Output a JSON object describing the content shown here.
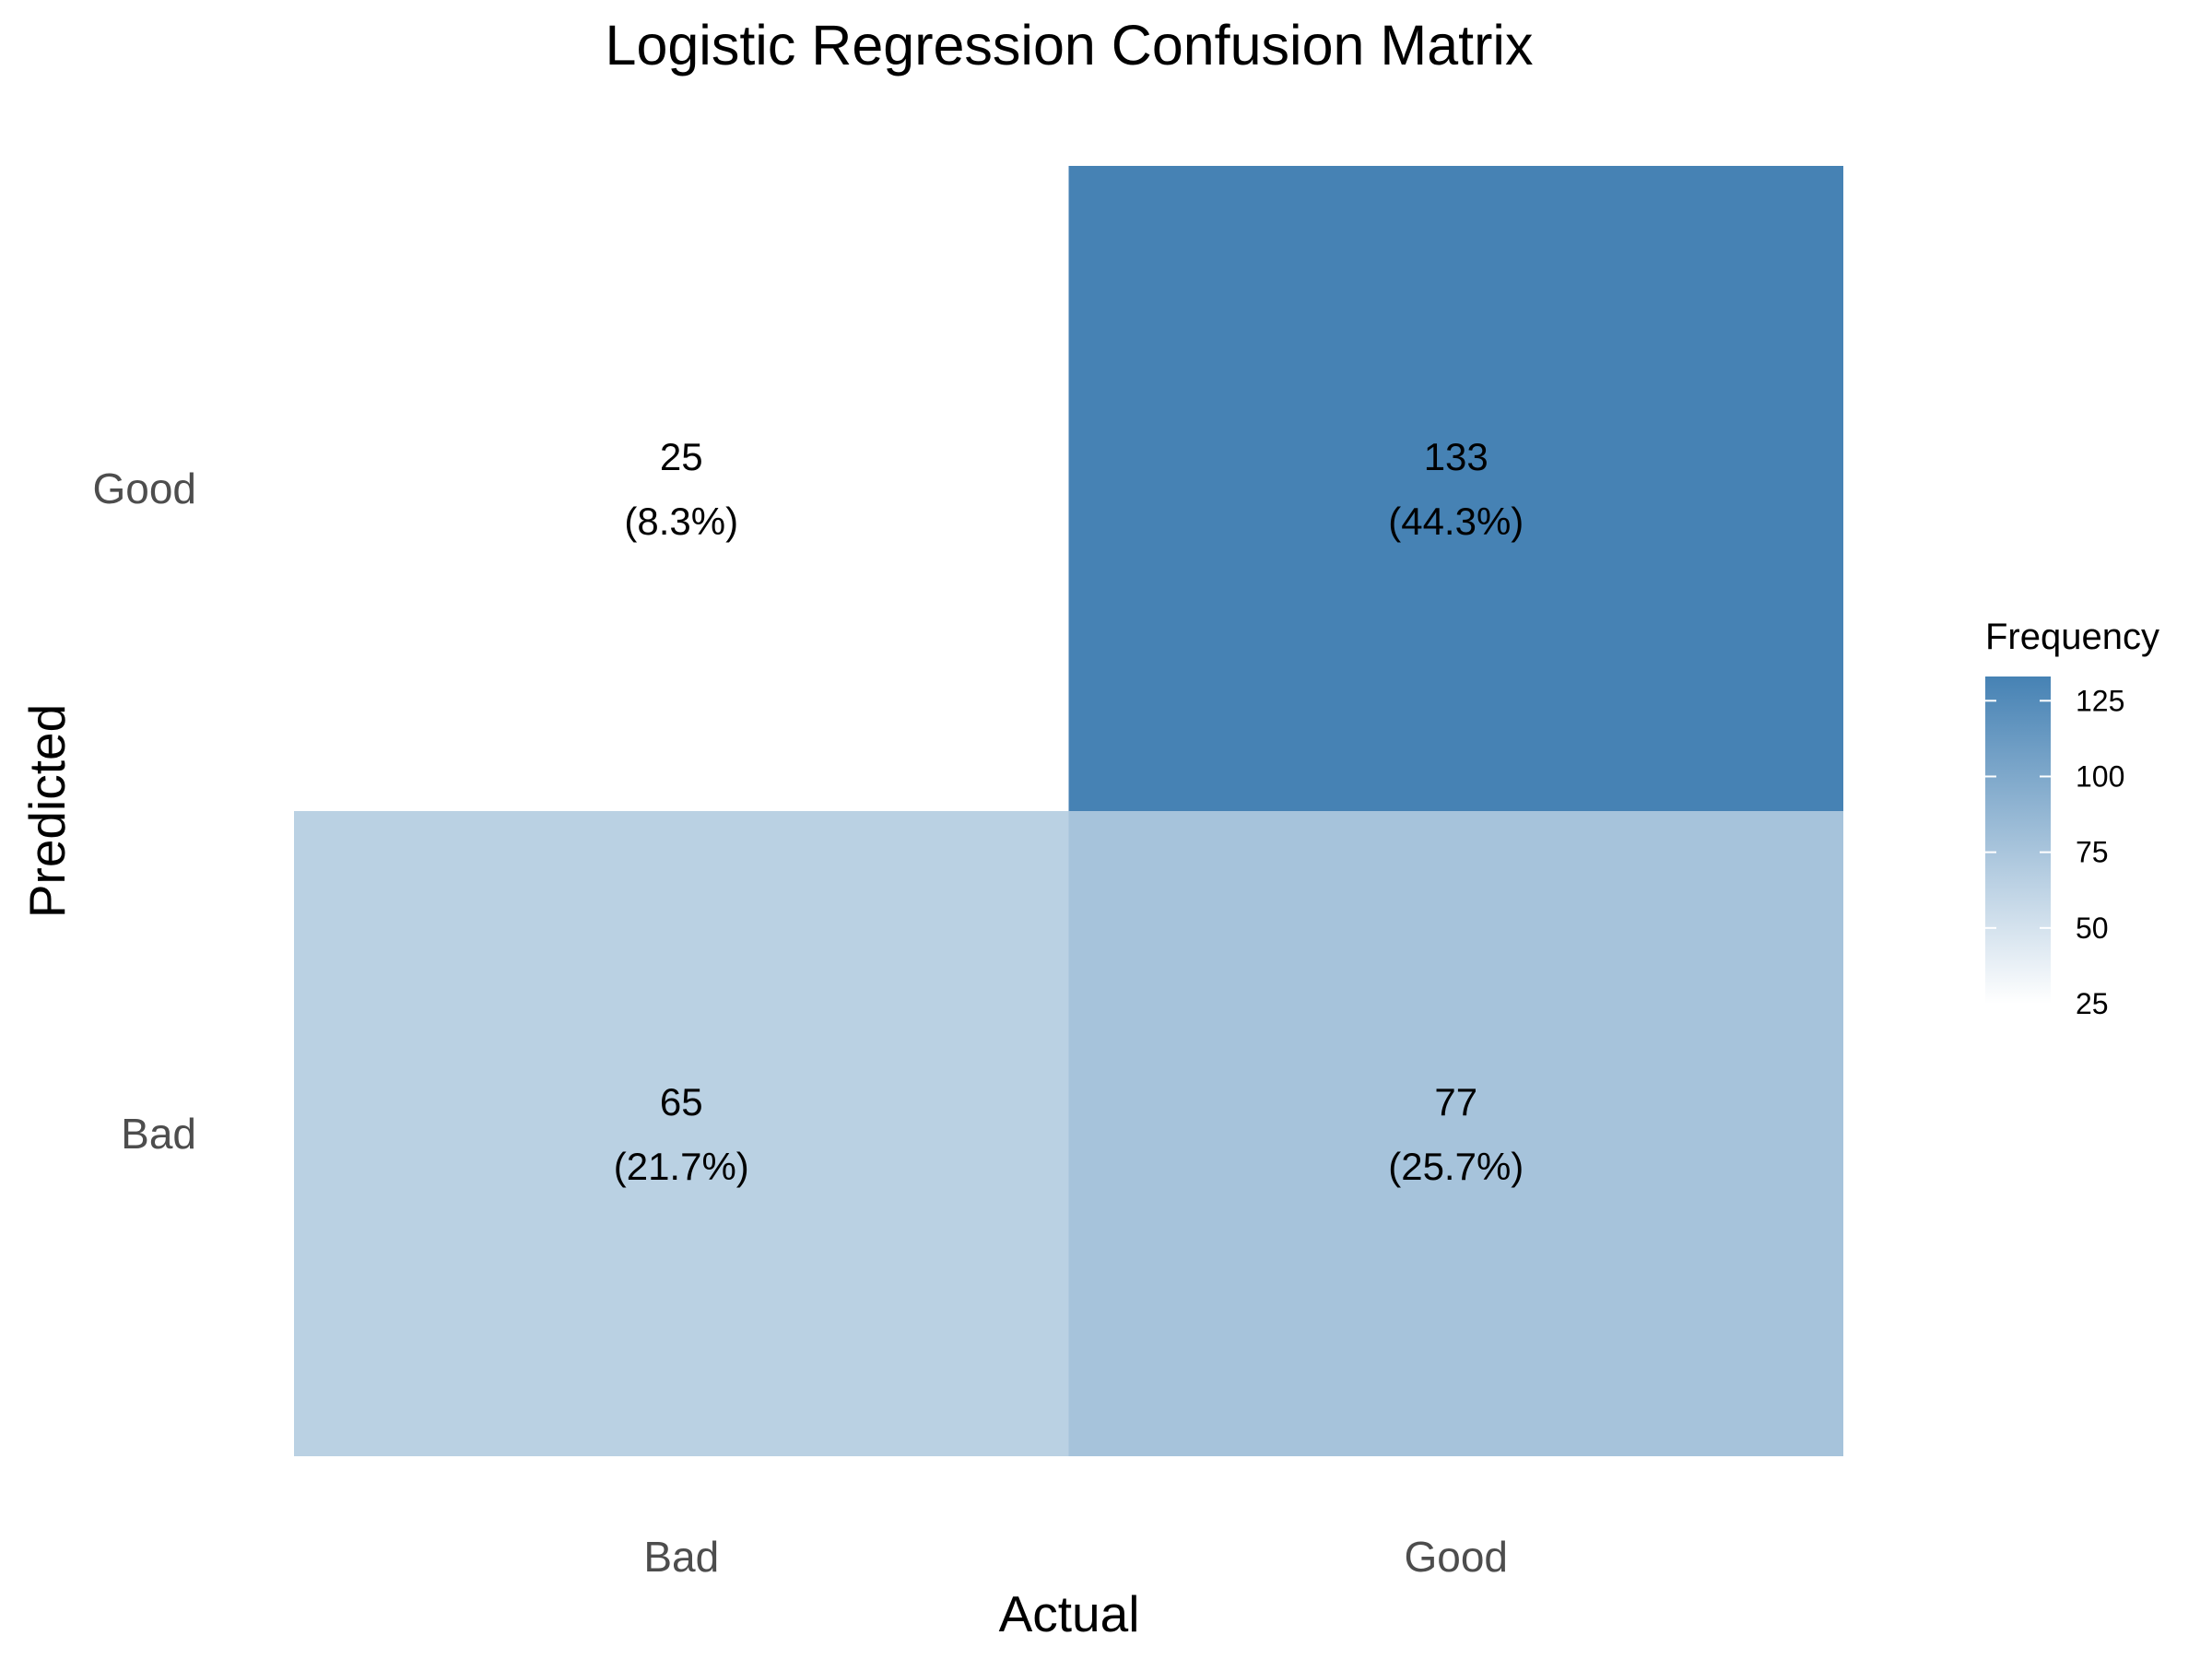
{
  "chart_data": {
    "type": "heatmap",
    "title": "Logistic Regression Confusion Matrix",
    "xlabel": "Actual",
    "ylabel": "Predicted",
    "x_categories": [
      "Bad",
      "Good"
    ],
    "y_categories": [
      "Bad",
      "Good"
    ],
    "cells": [
      {
        "actual": "Bad",
        "predicted": "Good",
        "value": 25,
        "percent_label": "(8.3%)"
      },
      {
        "actual": "Good",
        "predicted": "Good",
        "value": 133,
        "percent_label": "(44.3%)"
      },
      {
        "actual": "Bad",
        "predicted": "Bad",
        "value": 65,
        "percent_label": "(21.7%)"
      },
      {
        "actual": "Good",
        "predicted": "Bad",
        "value": 77,
        "percent_label": "(25.7%)"
      }
    ],
    "legend": {
      "title": "Frequency",
      "ticks": [
        25,
        50,
        75,
        100,
        125
      ],
      "range": [
        25,
        133
      ],
      "low_color": "#ffffff",
      "high_color": "#4682b4",
      "placement": "right"
    },
    "grid": false
  }
}
